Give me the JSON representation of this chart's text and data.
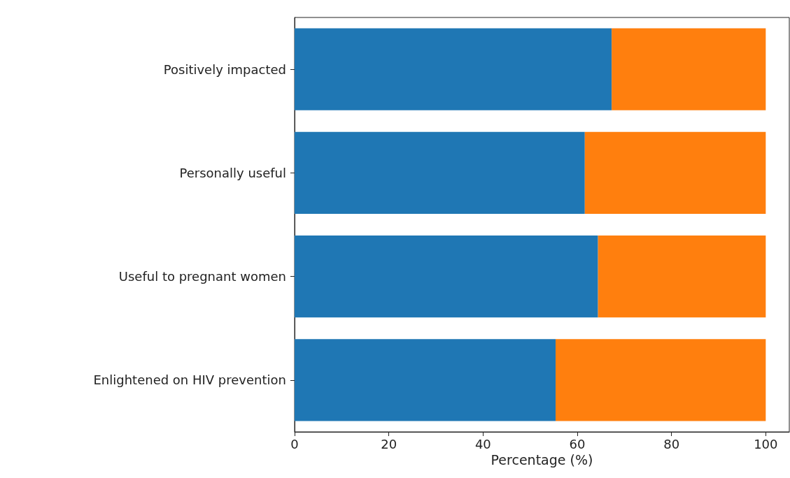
{
  "chart_data": {
    "type": "bar",
    "orientation": "horizontal",
    "stacked": true,
    "categories": [
      "Positively impacted",
      "Personally useful",
      "Useful to pregnant women",
      "Enlightened on HIV prevention"
    ],
    "series": [
      {
        "color": "#1f77b4",
        "values": [
          67.3,
          61.6,
          64.4,
          55.4
        ]
      },
      {
        "color": "#ff7f0e",
        "values": [
          32.7,
          38.4,
          35.6,
          44.6
        ]
      }
    ],
    "xlabel": "Percentage (%)",
    "xlim": [
      0,
      105
    ],
    "xticks": [
      0,
      20,
      40,
      60,
      80,
      100
    ]
  }
}
